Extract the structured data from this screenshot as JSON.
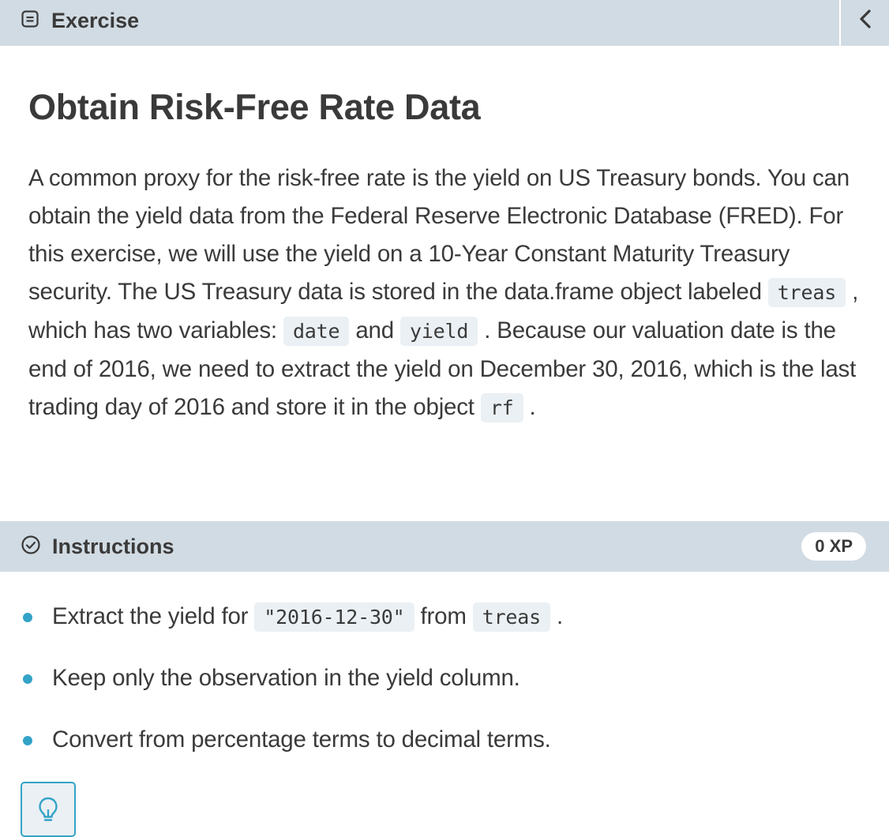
{
  "header": {
    "tab_label": "Exercise",
    "tab_icon": "document-icon",
    "collapse_icon": "chevron-left-icon"
  },
  "exercise": {
    "title": "Obtain Risk-Free Rate Data",
    "desc_1": "A common proxy for the risk-free rate is the yield on US Treasury bonds. You can obtain the yield data from the Federal Reserve Electronic Database (FRED). For this exercise, we will use the yield on a 10-Year Constant Maturity Treasury security. The US Treasury data is stored in the data.frame object labeled",
    "code_1": "treas",
    "desc_2": ", which has two variables:",
    "code_2": "date",
    "desc_3": "and",
    "code_3": "yield",
    "desc_4": ". Because our valuation date is the end of 2016, we need to extract the yield on December 30, 2016, which is the last trading day of 2016 and store it in the object",
    "code_4": "rf",
    "desc_5": "."
  },
  "instructions": {
    "label": "Instructions",
    "icon": "check-circle-icon",
    "xp": "0 XP",
    "steps": [
      {
        "pre": "Extract the yield for",
        "code_a": "\"2016-12-30\"",
        "mid": "from",
        "code_b": "treas",
        "post": "."
      },
      {
        "text": "Keep only the observation in the yield column."
      },
      {
        "text": "Convert from percentage terms to decimal terms."
      }
    ],
    "hint_icon": "lightbulb-icon"
  },
  "colors": {
    "header_bg": "#d1dbe3",
    "code_bg": "#eaf0f4",
    "accent": "#33a3c7",
    "text": "#3a3a3a"
  }
}
